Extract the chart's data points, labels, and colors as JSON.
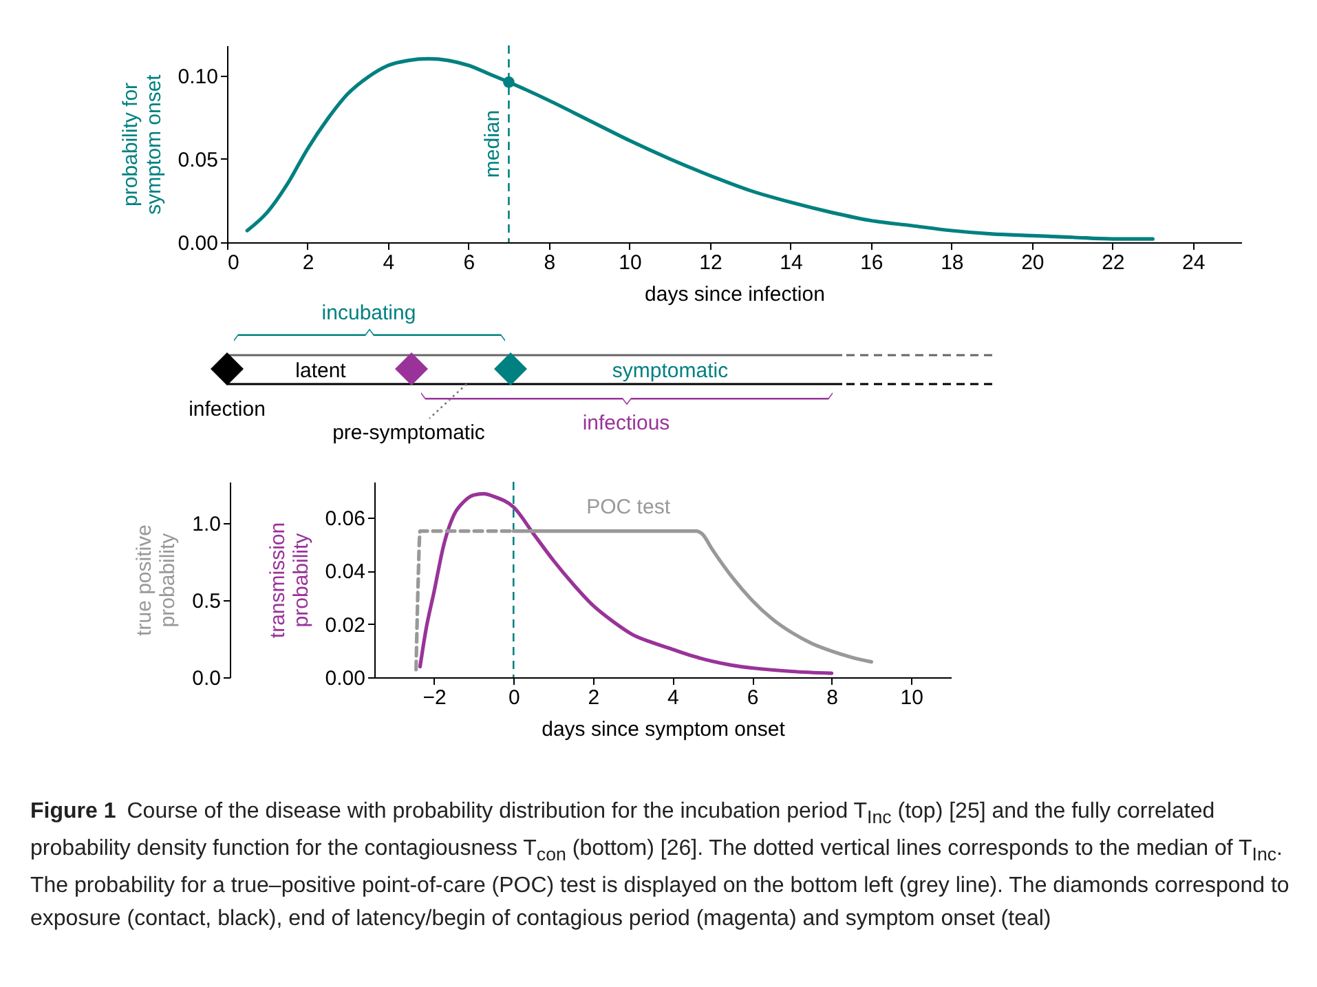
{
  "chart_data": [
    {
      "type": "line",
      "xlabel": "days since infection",
      "ylabel": "probability for symptom onset",
      "xlim": [
        0,
        25.2
      ],
      "ylim": [
        0,
        0.118
      ],
      "xticks": [
        0,
        2,
        4,
        6,
        8,
        10,
        12,
        14,
        16,
        18,
        20,
        22,
        24
      ],
      "yticks": [
        {
          "value": 0,
          "label": "0.00"
        },
        {
          "value": 0.05,
          "label": "0.05"
        },
        {
          "value": 0.1,
          "label": "0.10"
        }
      ],
      "series": [
        {
          "type": "line",
          "color": "#008080",
          "x": [
            0.5,
            1,
            1.5,
            2,
            2.5,
            3,
            3.5,
            4,
            4.5,
            5,
            5.5,
            6,
            6.5,
            7,
            8,
            9,
            10,
            11,
            12,
            13,
            14,
            15,
            16,
            17,
            18,
            19,
            20,
            21,
            22,
            23
          ],
          "values": [
            0.007,
            0.018,
            0.035,
            0.056,
            0.074,
            0.089,
            0.099,
            0.106,
            0.109,
            0.11,
            0.109,
            0.106,
            0.101,
            0.096,
            0.085,
            0.073,
            0.061,
            0.05,
            0.04,
            0.031,
            0.024,
            0.018,
            0.013,
            0.01,
            0.007,
            0.005,
            0.004,
            0.003,
            0.002,
            0.002
          ]
        },
        {
          "type": "scatter",
          "marker": "circle",
          "color": "#008080",
          "x": [
            7
          ],
          "values": [
            0.096
          ]
        }
      ],
      "ref_lines": [
        {
          "axis": "x",
          "value": 7,
          "label": "median",
          "color": "#008080",
          "line_style": "dashed"
        }
      ]
    },
    {
      "type": "other",
      "annotations": [
        "incubating",
        "latent",
        "symptomatic",
        "infection",
        "pre-symptomatic",
        "infectious"
      ]
    },
    {
      "type": "line",
      "xlabel": "days since symptom onset",
      "ylabel": "transmission probability",
      "y2label": "true positive probability",
      "xlim": [
        -3.5,
        11
      ],
      "ylim": [
        0,
        0.0735
      ],
      "y2lim": [
        0,
        1.27
      ],
      "xticks": [
        {
          "value": -2,
          "label": "−2"
        },
        0,
        2,
        4,
        6,
        8,
        10
      ],
      "yticks": [
        {
          "value": 0,
          "label": "0.00"
        },
        {
          "value": 0.02,
          "label": "0.02"
        },
        {
          "value": 0.04,
          "label": "0.04"
        },
        {
          "value": 0.06,
          "label": "0.06"
        }
      ],
      "y2ticks": [
        {
          "value": 0,
          "label": "0.0"
        },
        {
          "value": 0.5,
          "label": "0.5"
        },
        {
          "value": 1,
          "label": "1.0"
        }
      ],
      "series": [
        {
          "type": "line",
          "color": "#993399",
          "x": [
            -2.35,
            -2.2,
            -2,
            -1.75,
            -1.5,
            -1.25,
            -1,
            -0.75,
            -0.5,
            0,
            0.5,
            1,
            1.5,
            2,
            2.5,
            3,
            3.5,
            4,
            4.5,
            5,
            5.5,
            6,
            7,
            8
          ],
          "values": [
            0.004,
            0.018,
            0.032,
            0.05,
            0.061,
            0.066,
            0.0685,
            0.069,
            0.068,
            0.064,
            0.054,
            0.044,
            0.035,
            0.027,
            0.021,
            0.016,
            0.013,
            0.0105,
            0.008,
            0.006,
            0.0045,
            0.0035,
            0.0022,
            0.0015
          ]
        },
        {
          "type": "line",
          "axis": "y2",
          "line_style": "dashed",
          "color": "#999999",
          "x": [
            -2.45,
            -2.4,
            -2.35,
            0
          ],
          "values": [
            0.05,
            0.6,
            0.95,
            0.95
          ]
        },
        {
          "type": "line",
          "axis": "y2",
          "name": "POC test",
          "color": "#999999",
          "x": [
            0,
            4.6,
            4.75,
            5,
            5.5,
            6,
            6.5,
            7,
            7.5,
            8,
            8.5,
            9
          ],
          "values": [
            0.95,
            0.95,
            0.93,
            0.83,
            0.65,
            0.5,
            0.38,
            0.29,
            0.22,
            0.17,
            0.13,
            0.1
          ]
        }
      ],
      "ref_lines": [
        {
          "axis": "x",
          "value": 0,
          "color": "#008080",
          "line_style": "dashed"
        }
      ],
      "annotations": [
        "Figure 1",
        "Course of the disease with probability distribution for the incubation period T$_{Inc}$ (top) [25] and the fully correlated probability density function for the contagiousness T$_{con}$ (bottom) [26]. The dotted vertical lines corresponds to the median of T$_{Inc}$. The probability for a true–positive point-of-care (POC) test is displayed on the bottom left (grey line). The diamonds correspond to exposure (contact, black), end of latency/begin of contagious period (magenta) and symptom onset (teal)"
      ]
    }
  ]
}
